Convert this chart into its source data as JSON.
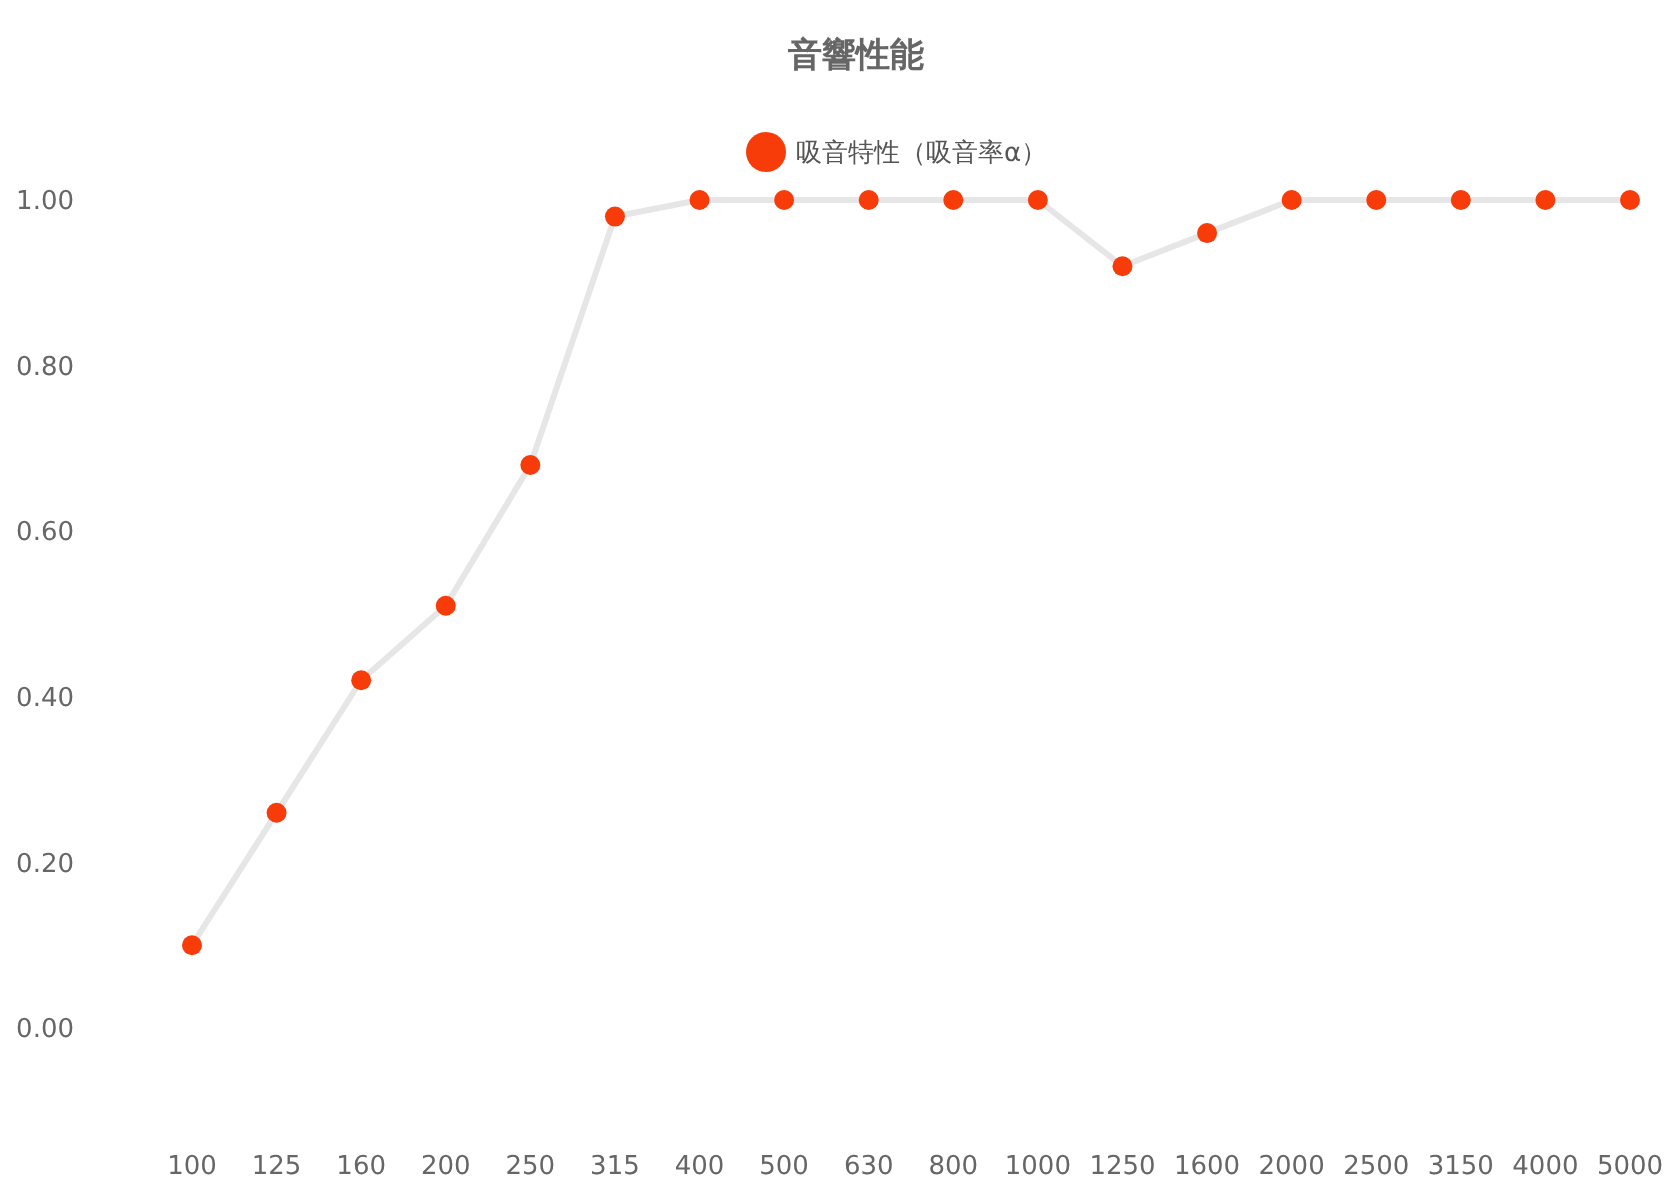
{
  "chart_data": {
    "type": "line",
    "title": "音響性能",
    "categories": [
      "100",
      "125",
      "160",
      "200",
      "250",
      "315",
      "400",
      "500",
      "630",
      "800",
      "1000",
      "1250",
      "1600",
      "2000",
      "2500",
      "3150",
      "4000",
      "5000"
    ],
    "series": [
      {
        "name": "吸音特性（吸音率α）",
        "color": "#f73c0a",
        "values": [
          0.1,
          0.26,
          0.42,
          0.51,
          0.68,
          0.98,
          1.0,
          1.0,
          1.0,
          1.0,
          1.0,
          0.92,
          0.96,
          1.0,
          1.0,
          1.0,
          1.0,
          1.0
        ]
      }
    ],
    "ylim": [
      0,
      1
    ],
    "yticks": [
      {
        "value": 0,
        "label": "0.00"
      },
      {
        "value": 0.2,
        "label": "0.20"
      },
      {
        "value": 0.4,
        "label": "0.40"
      },
      {
        "value": 0.6,
        "label": "0.60"
      },
      {
        "value": 0.8,
        "label": "0.80"
      },
      {
        "value": 1,
        "label": "1.00"
      }
    ],
    "grid": false,
    "legend": "top",
    "marker": "circle",
    "line_style": "solid"
  }
}
